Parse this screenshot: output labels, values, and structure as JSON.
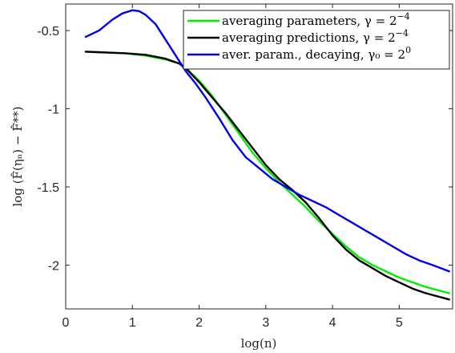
{
  "chart_data": {
    "type": "line",
    "title": "",
    "xlabel": "log(n)",
    "ylabel": "log (F̂(ηₙ) − F̂**)",
    "xlim": [
      0,
      5.8
    ],
    "ylim": [
      -2.28,
      -0.33
    ],
    "xticks": [
      0,
      1,
      2,
      3,
      4,
      5
    ],
    "xtick_labels": [
      "0",
      "1",
      "2",
      "3",
      "4",
      "5"
    ],
    "yticks": [
      -0.5,
      -1,
      -1.5,
      -2
    ],
    "ytick_labels": [
      "-0.5",
      "-1",
      "-1.5",
      "-2"
    ],
    "grid": false,
    "legend_position": "top-right",
    "series": [
      {
        "name": "averaging parameters, γ = 2⁻⁴",
        "color": "#00ee00",
        "x": [
          0.3,
          0.6,
          0.9,
          1.2,
          1.5,
          1.7,
          1.8,
          2.0,
          2.2,
          2.4,
          2.6,
          2.8,
          3.0,
          3.2,
          3.4,
          3.6,
          3.8,
          4.0,
          4.2,
          4.4,
          4.6,
          4.8,
          5.0,
          5.2,
          5.4,
          5.75
        ],
        "y": [
          -0.635,
          -0.64,
          -0.645,
          -0.66,
          -0.685,
          -0.71,
          -0.74,
          -0.82,
          -0.92,
          -1.04,
          -1.16,
          -1.28,
          -1.38,
          -1.47,
          -1.55,
          -1.63,
          -1.72,
          -1.8,
          -1.88,
          -1.95,
          -2.0,
          -2.04,
          -2.08,
          -2.11,
          -2.14,
          -2.18
        ]
      },
      {
        "name": "averaging predictions, γ = 2⁻⁴",
        "color": "#000000",
        "x": [
          0.3,
          0.6,
          0.9,
          1.2,
          1.5,
          1.7,
          1.8,
          2.0,
          2.2,
          2.4,
          2.6,
          2.8,
          3.0,
          3.2,
          3.4,
          3.6,
          3.8,
          4.0,
          4.2,
          4.4,
          4.6,
          4.8,
          5.0,
          5.2,
          5.4,
          5.75
        ],
        "y": [
          -0.635,
          -0.64,
          -0.645,
          -0.655,
          -0.68,
          -0.71,
          -0.74,
          -0.83,
          -0.93,
          -1.03,
          -1.14,
          -1.25,
          -1.36,
          -1.45,
          -1.52,
          -1.6,
          -1.7,
          -1.81,
          -1.9,
          -1.97,
          -2.02,
          -2.07,
          -2.11,
          -2.15,
          -2.18,
          -2.22
        ]
      },
      {
        "name": "aver. param., decaying, γ₀ = 2⁰",
        "color": "#0000ee",
        "x": [
          0.3,
          0.5,
          0.7,
          0.85,
          1.0,
          1.1,
          1.2,
          1.35,
          1.5,
          1.65,
          1.8,
          1.95,
          2.1,
          2.3,
          2.5,
          2.7,
          2.9,
          3.1,
          3.3,
          3.5,
          3.7,
          3.9,
          4.1,
          4.3,
          4.5,
          4.7,
          4.9,
          5.1,
          5.3,
          5.5,
          5.75
        ],
        "y": [
          -0.54,
          -0.5,
          -0.43,
          -0.39,
          -0.37,
          -0.375,
          -0.4,
          -0.46,
          -0.56,
          -0.66,
          -0.76,
          -0.84,
          -0.93,
          -1.06,
          -1.2,
          -1.31,
          -1.38,
          -1.45,
          -1.5,
          -1.55,
          -1.59,
          -1.63,
          -1.68,
          -1.73,
          -1.78,
          -1.83,
          -1.88,
          -1.93,
          -1.97,
          -2.0,
          -2.04
        ]
      }
    ]
  },
  "legend": {
    "items": [
      {
        "text": "averaging parameters, γ = 2",
        "sup": "−4"
      },
      {
        "text": "averaging predictions, γ = 2",
        "sup": "−4"
      },
      {
        "text": "aver. param., decaying, γ₀ = 2",
        "sup": "0"
      }
    ]
  }
}
